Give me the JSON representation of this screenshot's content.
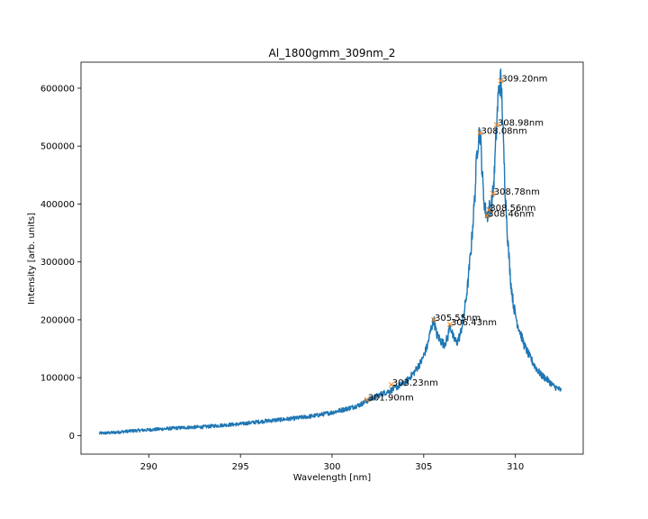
{
  "chart_data": {
    "type": "line",
    "title": "Al_1800gmm_309nm_2",
    "xlabel": "Wavelength [nm]",
    "ylabel": "Intensity [arb. units]",
    "xlim": [
      286.3,
      313.7
    ],
    "ylim": [
      -32000,
      645000
    ],
    "grid": false,
    "x_ticks": [
      290,
      295,
      300,
      305,
      310
    ],
    "y_ticks": [
      0,
      100000,
      200000,
      300000,
      400000,
      500000,
      600000
    ],
    "x_tick_labels": [
      "290",
      "295",
      "300",
      "305",
      "310"
    ],
    "y_tick_labels": [
      "0",
      "100000",
      "200000",
      "300000",
      "400000",
      "500000",
      "600000"
    ],
    "line_color": "#1f77b4",
    "marker_color": "#ff7f0e",
    "series": [
      {
        "x": [
          287.3,
          288.0,
          289.0,
          290.0,
          291.0,
          292.0,
          293.0,
          294.0,
          295.0,
          296.0,
          297.0,
          298.0,
          299.0,
          300.0,
          300.5,
          301.0,
          301.5,
          301.9,
          302.3,
          302.7,
          303.2,
          303.6,
          304.0,
          304.5,
          304.9,
          305.2,
          305.4,
          305.55,
          305.7,
          305.9,
          306.1,
          306.3,
          306.43,
          306.6,
          306.8,
          307.0,
          307.2,
          307.4,
          307.6,
          307.8,
          307.9,
          308.0,
          308.08,
          308.15,
          308.25,
          308.35,
          308.46,
          308.56,
          308.65,
          308.72,
          308.78,
          308.85,
          308.92,
          308.98,
          309.05,
          309.12,
          309.2,
          309.28,
          309.35,
          309.45,
          309.6,
          309.75,
          309.9,
          310.1,
          310.3,
          310.5,
          310.8,
          311.1,
          311.4,
          311.8,
          312.1,
          312.5
        ],
        "y": [
          4000,
          5000,
          8000,
          10000,
          12000,
          14000,
          15000,
          18000,
          20000,
          24000,
          27000,
          30000,
          34000,
          40000,
          44000,
          48000,
          53000,
          60000,
          66000,
          72000,
          78000,
          85000,
          92000,
          110000,
          130000,
          155000,
          185000,
          200000,
          175000,
          165000,
          158000,
          168000,
          192000,
          170000,
          160000,
          175000,
          210000,
          260000,
          330000,
          420000,
          490000,
          520000,
          523000,
          480000,
          420000,
          390000,
          380000,
          392000,
          395000,
          405000,
          420000,
          450000,
          500000,
          537000,
          580000,
          605000,
          613000,
          575000,
          500000,
          420000,
          330000,
          265000,
          225000,
          195000,
          175000,
          155000,
          135000,
          118000,
          105000,
          95000,
          85000,
          78000
        ]
      }
    ],
    "peaks": [
      {
        "x": 301.9,
        "y": 62000,
        "label": "301.90nm"
      },
      {
        "x": 303.23,
        "y": 88000,
        "label": "303.23nm"
      },
      {
        "x": 305.55,
        "y": 200000,
        "label": "305.55nm"
      },
      {
        "x": 306.43,
        "y": 192000,
        "label": "306.43nm"
      },
      {
        "x": 308.08,
        "y": 523000,
        "label": "308.08nm"
      },
      {
        "x": 308.46,
        "y": 380000,
        "label": "308.46nm"
      },
      {
        "x": 308.56,
        "y": 390000,
        "label": "308.56nm"
      },
      {
        "x": 308.78,
        "y": 418000,
        "label": "308.78nm"
      },
      {
        "x": 308.98,
        "y": 537000,
        "label": "308.98nm"
      },
      {
        "x": 309.2,
        "y": 613000,
        "label": "309.20nm"
      }
    ]
  }
}
